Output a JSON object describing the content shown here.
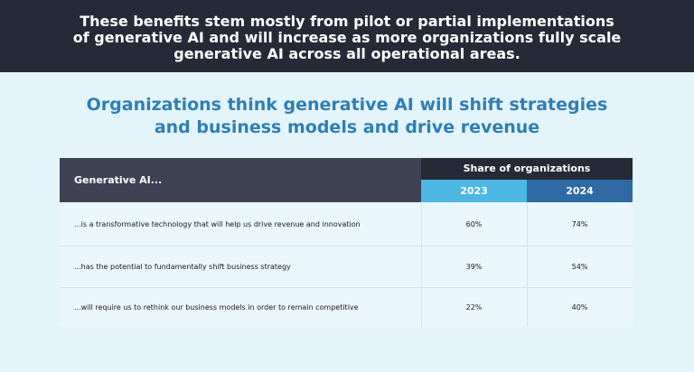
{
  "banner": {
    "lines": [
      "These benefits stem mostly from pilot or partial implementations",
      "of generative AI and will increase as more organizations fully scale",
      "generative AI across all operational areas."
    ]
  },
  "headline": {
    "lines": [
      "Organizations think generative AI will shift strategies",
      "and business models and drive revenue"
    ]
  },
  "colors": {
    "banner_bg": "#262a37",
    "headline": "#2e7fb5",
    "col_2023": "#4cb7e2",
    "col_2024": "#2f6aa5",
    "left_header": "#3f4255"
  },
  "chart_data": {
    "type": "table",
    "row_header": "Generative AI...",
    "group_header": "Share of organizations",
    "columns": [
      "2023",
      "2024"
    ],
    "rows": [
      {
        "label": "...is a transformative technology that will help us drive revenue and innovation",
        "values": [
          "60%",
          "74%"
        ]
      },
      {
        "label": "...has the potential to fundamentally shift business strategy",
        "values": [
          "39%",
          "54%"
        ]
      },
      {
        "label": "...will require us to rethink our business models in order to remain competitive",
        "values": [
          "22%",
          "40%"
        ]
      }
    ]
  }
}
